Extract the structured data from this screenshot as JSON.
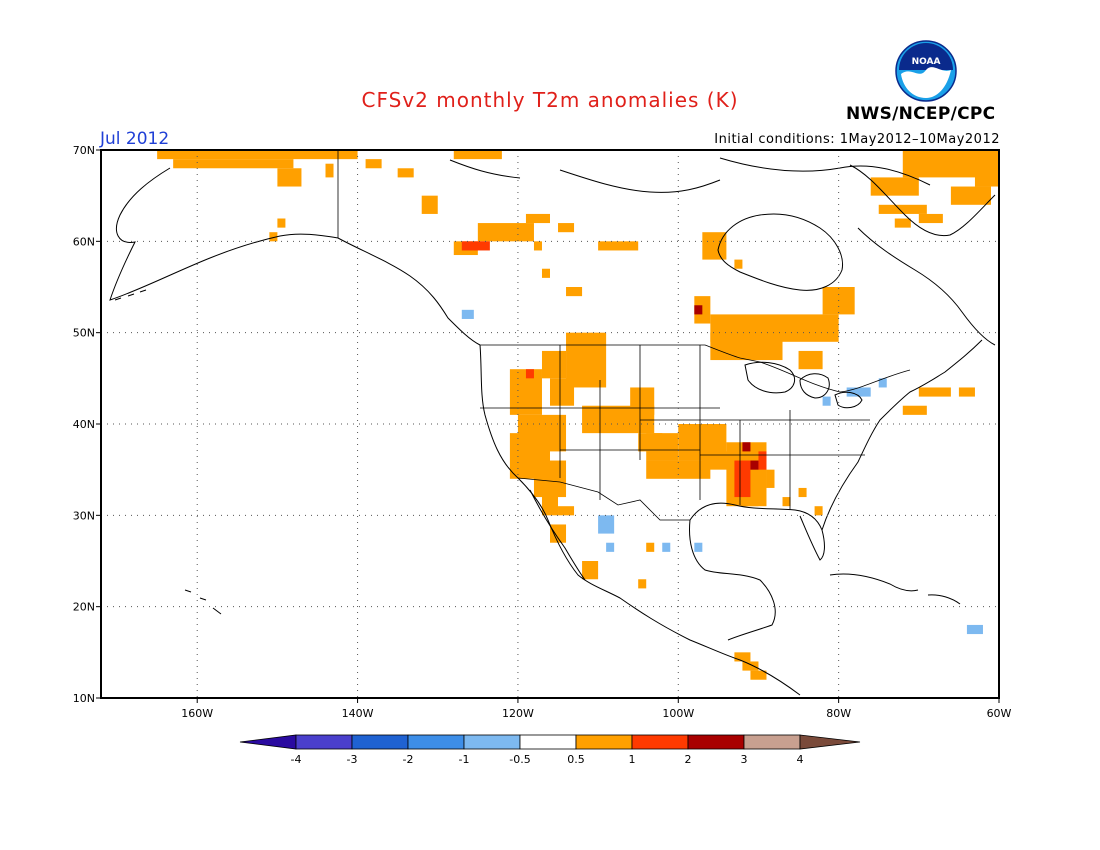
{
  "header": {
    "title": "CFSv2 monthly T2m anomalies (K)",
    "period": "Jul 2012",
    "initial_conditions": "Initial conditions: 1May2012–10May2012",
    "agency": "NWS/NCEP/CPC",
    "logo_text": "NOAA"
  },
  "map": {
    "lon_range": [
      -172,
      -60
    ],
    "lat_range": [
      10,
      70
    ],
    "lat_ticks": [
      "70N",
      "60N",
      "50N",
      "40N",
      "30N",
      "20N",
      "10N"
    ],
    "lon_ticks": [
      "160W",
      "140W",
      "120W",
      "100W",
      "80W",
      "60W"
    ],
    "grid": "dotted",
    "anomalies": [
      {
        "region": "Northern Alaska / Yukon",
        "category": "0.5-1"
      },
      {
        "region": "Northern British Columbia",
        "category": "0.5-1"
      },
      {
        "region": "Northern Alberta hotspot",
        "category": "1-2"
      },
      {
        "region": "Northern Ontario / Quebec",
        "category": "0.5-1"
      },
      {
        "region": "Lake of the Woods hotspot",
        "category": "2-3"
      },
      {
        "region": "Western Greenland / Baffin",
        "category": "0.5-1"
      },
      {
        "region": "US Pacific Northwest / Idaho",
        "category": "0.5-1"
      },
      {
        "region": "Great Basin / California",
        "category": "0.5-1"
      },
      {
        "region": "Central Plains",
        "category": "0.5-1"
      },
      {
        "region": "Mississippi Valley",
        "category": "1-2"
      },
      {
        "region": "Northern Mexico",
        "category": "-1 to -0.5"
      }
    ]
  },
  "colorbar": {
    "labels": [
      "-4",
      "-3",
      "-2",
      "-1",
      "-0.5",
      "0.5",
      "1",
      "2",
      "3",
      "4"
    ],
    "colors": [
      "#2a0aa0",
      "#4a3fcc",
      "#1f62d2",
      "#3d8ee8",
      "#7db9f0",
      "#ffffff",
      "#ffa000",
      "#ff3a00",
      "#a80000",
      "#c8a090",
      "#7a4a3a"
    ]
  }
}
